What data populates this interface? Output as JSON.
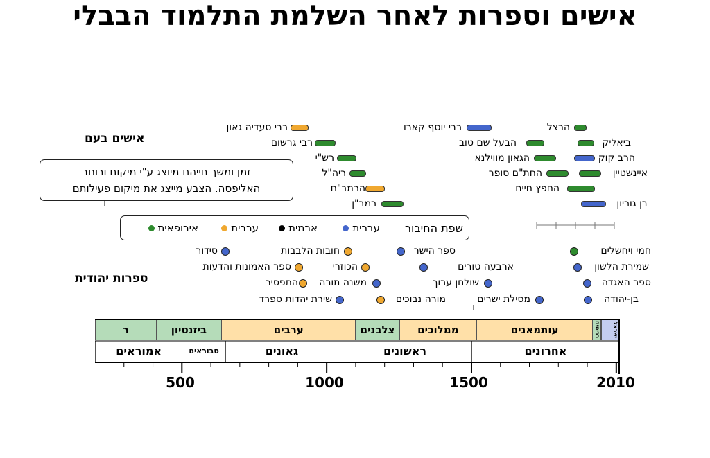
{
  "title": "אישים וספרות לאחר השלמת התלמוד הבבלי",
  "colors": {
    "green": "#2e8b2e",
    "blue": "#4466cc",
    "orange": "#f0a830",
    "black": "#000000"
  },
  "sections": {
    "people": "אישים בעם",
    "literature": "ספרות יהודית"
  },
  "note": {
    "line1": "זמן ומשך חייהם מיוצג ע\"י מיקום ורוחב",
    "line2": "האליפסה. הצבע מייצג את מיקום פעילותם"
  },
  "legend": {
    "title": "שפת החיבור",
    "items": [
      {
        "label": "עברית",
        "color": "blue"
      },
      {
        "label": "ארמית",
        "color": "black"
      },
      {
        "label": "ערבית",
        "color": "orange"
      },
      {
        "label": "אירופאית",
        "color": "green"
      }
    ]
  },
  "people": [
    {
      "name": "רבי סעדיה גאון",
      "color": "orange"
    },
    {
      "name": "רבי גרשום",
      "color": "green"
    },
    {
      "name": "רש\"י",
      "color": "green"
    },
    {
      "name": "ריה\"ל",
      "color": "green"
    },
    {
      "name": "הרמב\"ם",
      "color": "orange"
    },
    {
      "name": "רמב\"ן",
      "color": "green"
    },
    {
      "name": "רבי יוסף קארו",
      "color": "blue"
    },
    {
      "name": "הבעל שם טוב",
      "color": "green"
    },
    {
      "name": "הגאון מווילנא",
      "color": "green"
    },
    {
      "name": "החת\"ם סופר",
      "color": "green"
    },
    {
      "name": "החפץ חיים",
      "color": "green"
    },
    {
      "name": "הרצל",
      "color": "green"
    },
    {
      "name": "ביאליק",
      "color": "green"
    },
    {
      "name": "הרב קוק",
      "color": "blue"
    },
    {
      "name": "איינשטיין",
      "color": "green"
    },
    {
      "name": "בן גוריון",
      "color": "blue"
    }
  ],
  "books": [
    {
      "name": "סידור",
      "color": "blue"
    },
    {
      "name": "חובות הלבבות",
      "color": "orange"
    },
    {
      "name": "ספר האמונות והדעות",
      "color": "orange"
    },
    {
      "name": "הכוזרי",
      "color": "orange"
    },
    {
      "name": "התפסיר",
      "color": "orange"
    },
    {
      "name": "משנה תורה",
      "color": "blue"
    },
    {
      "name": "שירת יהדות ספרד",
      "color": "blue"
    },
    {
      "name": "מורה נבוכים",
      "color": "orange"
    },
    {
      "name": "ספר הישר",
      "color": "blue"
    },
    {
      "name": "ארבעה טורים",
      "color": "blue"
    },
    {
      "name": "שולחן ערוך",
      "color": "blue"
    },
    {
      "name": "מסילת ישרים",
      "color": "blue"
    },
    {
      "name": "חמי ויחשלים",
      "color": "green"
    },
    {
      "name": "שמירת הלשון",
      "color": "blue"
    },
    {
      "name": "ספר האגדה",
      "color": "blue"
    },
    {
      "name": "בן-יהודה",
      "color": "blue"
    }
  ],
  "rulers": [
    {
      "label": "ר",
      "from": 200,
      "to": 410,
      "color": "#b5dcb9"
    },
    {
      "label": "ביזנטיון",
      "from": 410,
      "to": 636,
      "color": "#b5dcb9"
    },
    {
      "label": "ערבים",
      "from": 636,
      "to": 1099,
      "color": "#ffe0a8"
    },
    {
      "label": "צלבנים",
      "from": 1099,
      "to": 1250,
      "color": "#b5dcb9"
    },
    {
      "label": "ממלוכים",
      "from": 1250,
      "to": 1517,
      "color": "#ffe0a8"
    },
    {
      "label": "עותמאנים",
      "from": 1517,
      "to": 1917,
      "color": "#ffe0a8"
    },
    {
      "label": "בריטים",
      "from": 1917,
      "to": 1948,
      "color": "#b5dcb9"
    },
    {
      "label": "ישראל",
      "from": 1948,
      "to": 2010,
      "color": "#c4cdf0"
    }
  ],
  "eras": [
    {
      "label": "אמוראים",
      "from": 200,
      "to": 500
    },
    {
      "label": "סבוראים",
      "from": 500,
      "to": 650
    },
    {
      "label": "גאונים",
      "from": 650,
      "to": 1038
    },
    {
      "label": "ראשונים",
      "from": 1038,
      "to": 1500
    },
    {
      "label": "אחרונים",
      "from": 1500,
      "to": 2010
    }
  ],
  "axis": {
    "ticks": [
      "500",
      "1000",
      "1500",
      "2010"
    ]
  }
}
